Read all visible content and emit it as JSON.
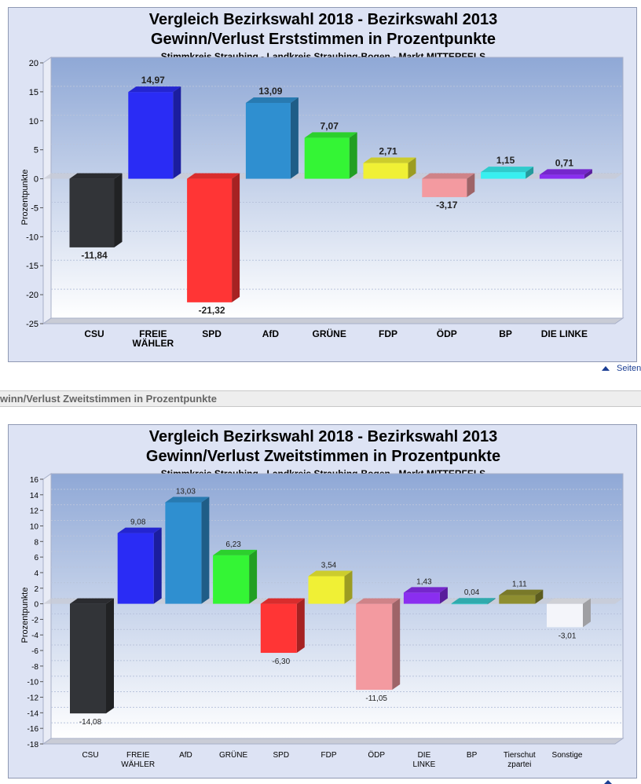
{
  "charts_text": [
    {
      "title1": "Vergleich Bezirkswahl 2018 - Bezirkswahl 2013",
      "title2": "Gewinn/Verlust Erststimmen in Prozentpunkte",
      "subtitle": "Stimmkreis Straubing - Landkreis Straubing-Bogen - Markt MITTERFELS"
    },
    {
      "title1": "Vergleich Bezirkswahl 2018 - Bezirkswahl 2013",
      "title2": "Gewinn/Verlust Zweitstimmen in Prozentpunkte",
      "subtitle": "Stimmkreis Straubing - Landkreis Straubing-Bogen - Markt MITTERFELS"
    }
  ],
  "footer_link": "Seitenanfang",
  "section_heading": "winn/Verlust Zweitstimmen in Prozentpunkte",
  "chart_data": [
    {
      "type": "bar",
      "title": "Vergleich Bezirkswahl 2018 - Bezirkswahl 2013",
      "subtitle": "Gewinn/Verlust Erststimmen in Prozentpunkte",
      "ylabel": "Prozentpunkte",
      "ylim": [
        -25,
        20
      ],
      "yticks": [
        20,
        15,
        10,
        5,
        0,
        -5,
        -10,
        -15,
        -20,
        -25
      ],
      "categories": [
        "CSU",
        "FREIE WÄHLER",
        "SPD",
        "AfD",
        "GRÜNE",
        "FDP",
        "ÖDP",
        "BP",
        "DIE LINKE"
      ],
      "category_lines": [
        [
          "CSU"
        ],
        [
          "FREIE",
          "WÄHLER"
        ],
        [
          "SPD"
        ],
        [
          "AfD"
        ],
        [
          "GRÜNE"
        ],
        [
          "FDP"
        ],
        [
          "ÖDP"
        ],
        [
          "BP"
        ],
        [
          "DIE LINKE"
        ]
      ],
      "values": [
        -11.84,
        14.97,
        -21.32,
        13.09,
        7.07,
        2.71,
        -3.17,
        1.15,
        0.71
      ],
      "value_labels": [
        "-11,84",
        "14,97",
        "-21,32",
        "13,09",
        "7,07",
        "2,71",
        "-3,17",
        "1,15",
        "0,71"
      ],
      "colors": [
        "#323438",
        "#2a2cf5",
        "#ff3535",
        "#2f8fd0",
        "#34f535",
        "#f0f035",
        "#f39aa0",
        "#38eff0",
        "#8a2ef0"
      ],
      "grid": true
    },
    {
      "type": "bar",
      "title": "Vergleich Bezirkswahl 2018 - Bezirkswahl 2013",
      "subtitle": "Gewinn/Verlust Zweitstimmen in Prozentpunkte",
      "ylabel": "Prozentpunkte",
      "ylim": [
        -18,
        16
      ],
      "yticks": [
        16,
        14,
        12,
        10,
        8,
        6,
        4,
        2,
        0,
        -2,
        -4,
        -6,
        -8,
        -10,
        -12,
        -14,
        -16,
        -18
      ],
      "categories": [
        "CSU",
        "FREIE WÄHLER",
        "AfD",
        "GRÜNE",
        "SPD",
        "FDP",
        "ÖDP",
        "DIE LINKE",
        "BP",
        "Tierschutzpartei",
        "Sonstige"
      ],
      "category_lines": [
        [
          "CSU"
        ],
        [
          "FREIE",
          "WÄHLER"
        ],
        [
          "AfD"
        ],
        [
          "GRÜNE"
        ],
        [
          "SPD"
        ],
        [
          "FDP"
        ],
        [
          "ÖDP"
        ],
        [
          "DIE",
          "LINKE"
        ],
        [
          "BP"
        ],
        [
          "Tierschut",
          "zpartei"
        ],
        [
          "Sonstige"
        ]
      ],
      "values": [
        -14.08,
        9.08,
        13.03,
        6.23,
        -6.3,
        3.54,
        -11.05,
        1.43,
        0.04,
        1.11,
        -3.01
      ],
      "value_labels": [
        "-14,08",
        "9,08",
        "13,03",
        "6,23",
        "-6,30",
        "3,54",
        "-11,05",
        "1,43",
        "0,04",
        "1,11",
        "-3,01"
      ],
      "colors": [
        "#323438",
        "#2a2cf5",
        "#2f8fd0",
        "#34f535",
        "#ff3535",
        "#f0f035",
        "#f39aa0",
        "#8a2ef0",
        "#38c8cc",
        "#8e8e30",
        "#f4f5fa"
      ],
      "grid": true
    }
  ]
}
